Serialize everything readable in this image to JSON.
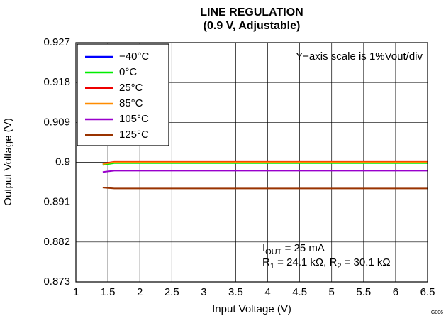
{
  "chart_data": {
    "type": "line",
    "title": "LINE REGULATION",
    "subtitle": "(0.9 V, Adjustable)",
    "xlabel": "Input Voltage (V)",
    "ylabel": "Output Voltage (V)",
    "x": [
      1.42,
      1.6,
      6.5
    ],
    "series": [
      {
        "name": "−40°C",
        "color": "#0000ff",
        "values": [
          0.8995,
          0.8999,
          0.8999
        ]
      },
      {
        "name": "0°C",
        "color": "#00ee00",
        "values": [
          0.8994,
          0.8998,
          0.8998
        ]
      },
      {
        "name": "25°C",
        "color": "#ee0000",
        "values": [
          0.8997,
          0.9001,
          0.9001
        ]
      },
      {
        "name": "85°C",
        "color": "#ff8c00",
        "values": [
          0.8996,
          0.9,
          0.9
        ]
      },
      {
        "name": "105°C",
        "color": "#9900cc",
        "values": [
          0.8978,
          0.8981,
          0.8981
        ]
      },
      {
        "name": "125°C",
        "color": "#993300",
        "values": [
          0.8943,
          0.8941,
          0.8941
        ]
      }
    ],
    "xlim": [
      1,
      6.5
    ],
    "xticks": [
      1,
      1.5,
      2,
      2.5,
      3,
      3.5,
      4,
      4.5,
      5,
      5.5,
      6,
      6.5
    ],
    "ylim": [
      0.873,
      0.927
    ],
    "yticks": [
      0.873,
      0.882,
      0.891,
      0.9,
      0.909,
      0.918,
      0.927
    ],
    "grid": true,
    "legend": "upper left",
    "annotations": {
      "scale": "Y−axis scale is 1%Vout/div",
      "iout": [
        "I",
        "OUT",
        " = 25 mA"
      ],
      "resistors": [
        "R",
        "1",
        " = 24.1 kΩ, ",
        "R",
        "2",
        " = 30.1 kΩ"
      ]
    },
    "figure_id": "G006"
  }
}
